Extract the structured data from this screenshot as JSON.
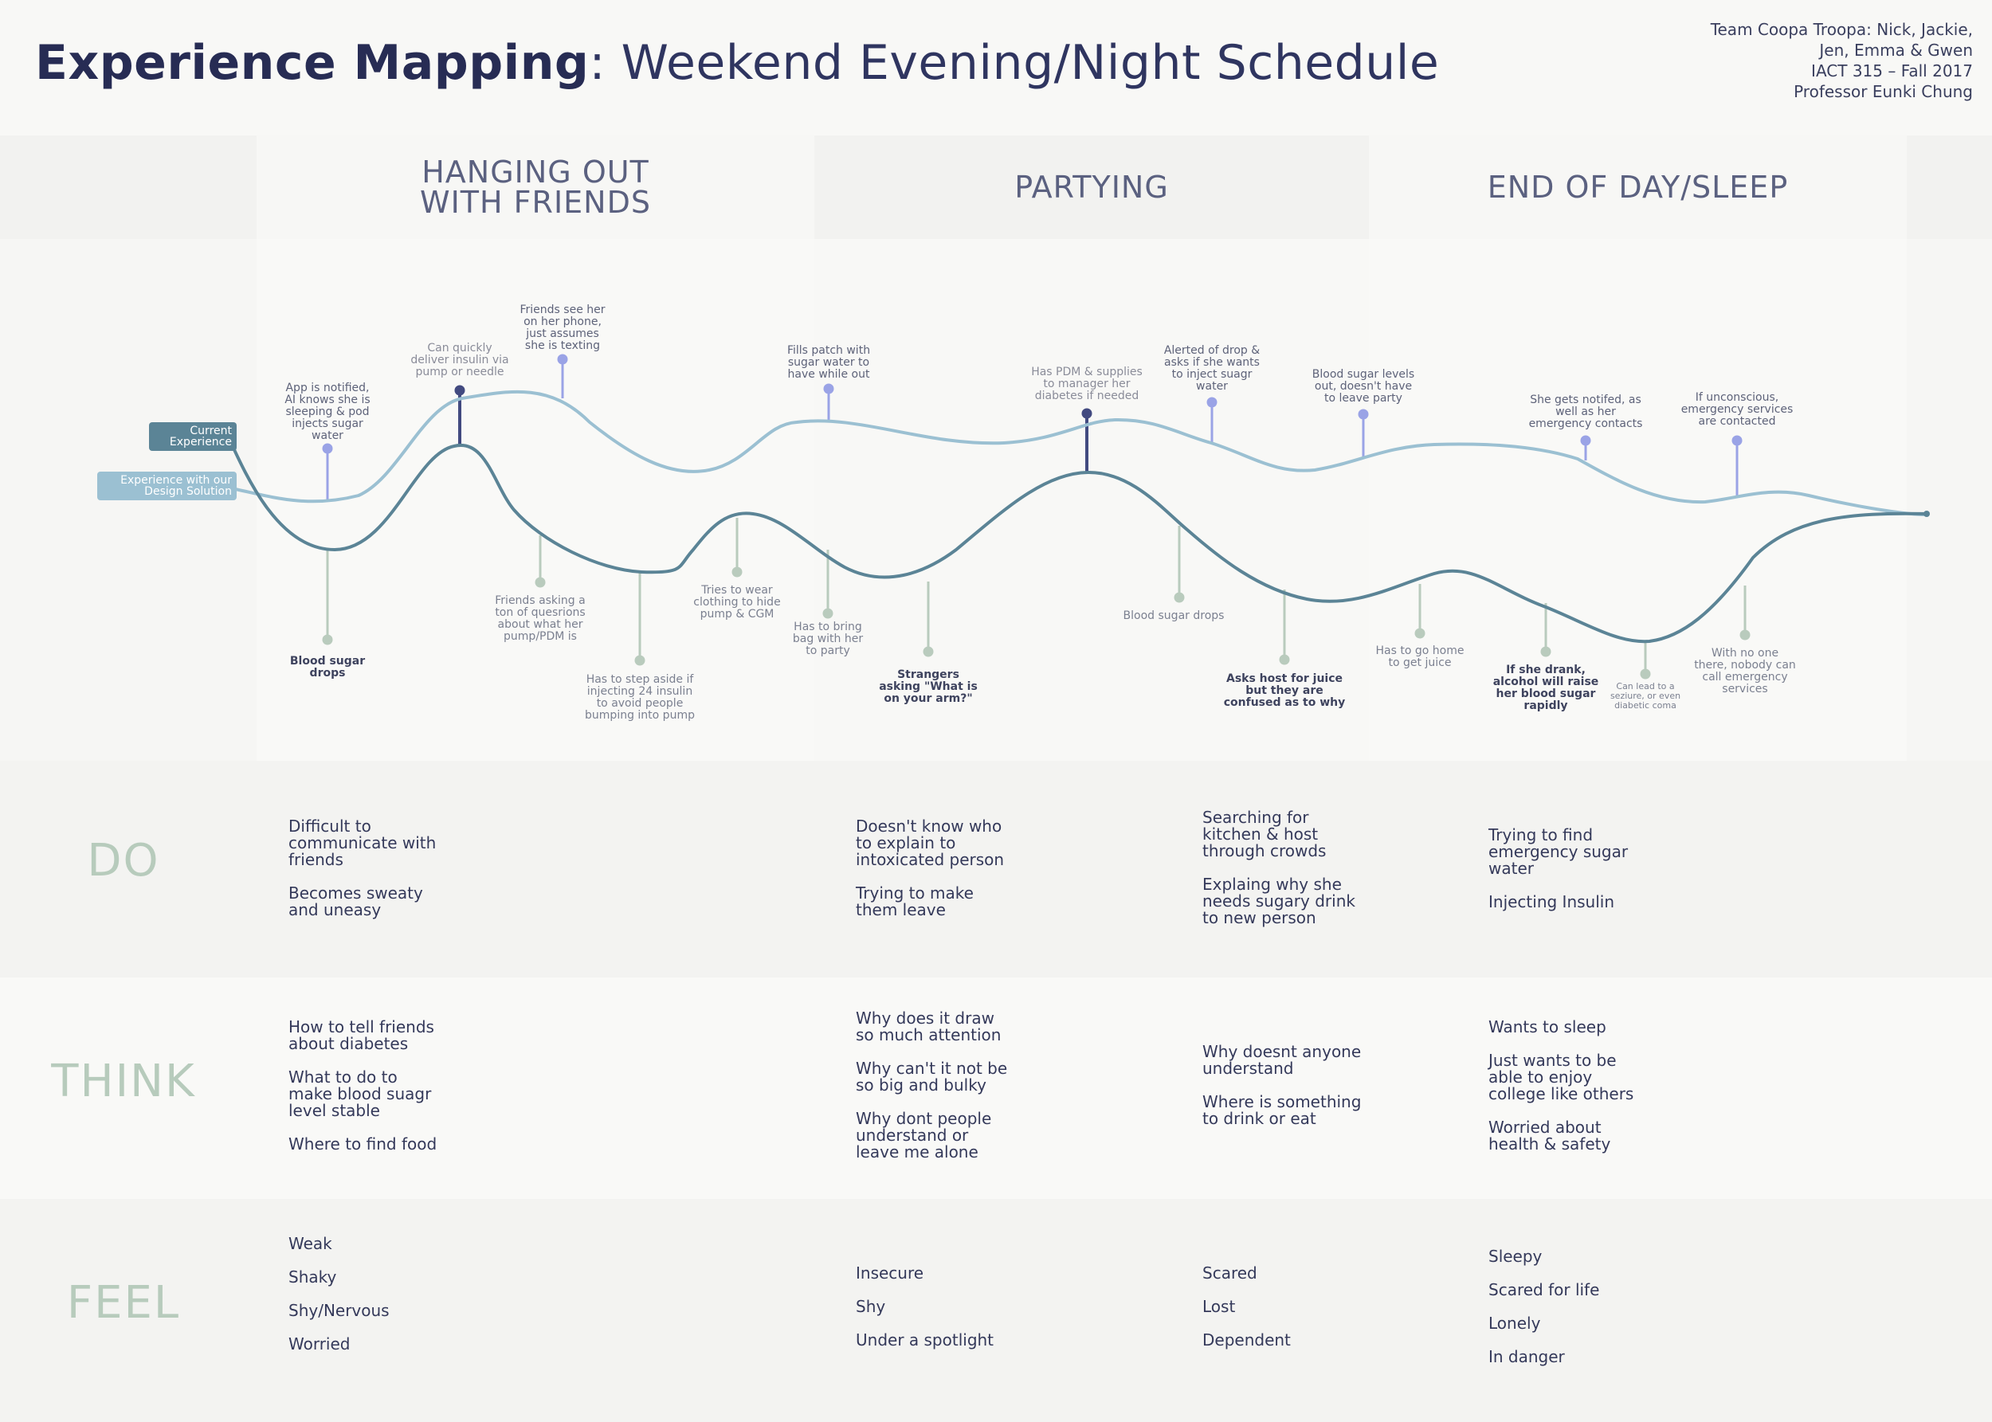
{
  "header": {
    "title_bold": "Experience Mapping",
    "title_rest": ": Weekend Evening/Night Schedule",
    "team_lines": [
      "Team Coopa Troopa: Nick, Jackie,",
      "Jen, Emma & Gwen",
      "IACT 315 – Fall 2017",
      "Professor Eunki Chung"
    ]
  },
  "phases": [
    "HANGING OUT\nWITH FRIENDS",
    "PARTYING",
    "END OF DAY/SLEEP"
  ],
  "legend": {
    "current": "Current\nExperience",
    "solution": "Experience with our\nDesign Solution"
  },
  "colors": {
    "current_line": "#5b8496",
    "solution_line": "#9bc0d2",
    "top_pin": "#9aa3e6",
    "dark_pin": "#424a80",
    "bottom_pin": "#b9cbbd",
    "row_label": "#b7cbbc"
  },
  "annotations_top": [
    "App is notified,\nAI knows she is\nsleeping & pod\ninjects sugar\nwater",
    "Can quickly\ndeliver insulin via\npump or needle",
    "Friends see her\non her phone,\njust assumes\nshe is texting",
    "Fills patch with\nsugar water to\nhave while out",
    "Has PDM & supplies\nto manager her\ndiabetes if needed",
    "Alerted of drop &\nasks if she wants\nto inject suagr\nwater",
    "Blood sugar levels\nout, doesn't have\nto leave party",
    "She gets notifed, as\nwell as her\nemergency contacts",
    "If unconscious,\nemergency services\nare contacted"
  ],
  "annotations_bottom": [
    "Blood sugar\ndrops",
    "Friends asking a\nton of quesrions\nabout what her\npump/PDM is",
    "Has to step aside if\ninjecting 24 insulin\nto avoid people\nbumping into pump",
    "Tries to wear\nclothing to hide\npump & CGM",
    "Has to bring\nbag with her\nto party",
    "Strangers\nasking \"What is\non your arm?\"",
    "Blood sugar drops",
    "Asks host for juice\nbut they are\nconfused as to why",
    "Has to go home\nto get juice",
    "If she drank,\nalcohol will raise\nher blood sugar\nrapidly",
    "Can lead to a\nseziure, or even\ndiabetic coma",
    "With no one\nthere, nobody can\ncall emergency\nservices"
  ],
  "rows": {
    "do": {
      "label": "DO",
      "cols": [
        [
          "Difficult to\ncommunicate with\nfriends",
          "Becomes sweaty\nand uneasy"
        ],
        [
          "Doesn't know who\nto explain to\nintoxicated person",
          "Trying to make\nthem leave"
        ],
        [
          "Searching for\nkitchen & host\nthrough crowds",
          "Explaing why she\nneeds sugary drink\nto new person"
        ],
        [
          "Trying to find\nemergency sugar\nwater",
          "Injecting Insulin"
        ]
      ]
    },
    "think": {
      "label": "THINK",
      "cols": [
        [
          "How to tell friends\nabout diabetes",
          "What to do to\nmake blood suagr\nlevel stable",
          "Where to find food"
        ],
        [
          "Why does it draw\nso much attention",
          "Why can't it not be\nso big and bulky",
          "Why dont people\nunderstand or\nleave me alone"
        ],
        [
          "Why doesnt anyone\nunderstand",
          "Where is something\nto drink or eat"
        ],
        [
          "Wants to sleep",
          "Just wants to be\nable to enjoy\ncollege like others",
          "Worried about\nhealth & safety"
        ]
      ]
    },
    "feel": {
      "label": "FEEL",
      "cols": [
        [
          "Weak",
          "Shaky",
          "Shy/Nervous",
          "Worried"
        ],
        [
          "Insecure",
          "Shy",
          "Under a spotlight"
        ],
        [
          "Scared",
          "Lost",
          "Dependent"
        ],
        [
          "Sleepy",
          "Scared for life",
          "Lonely",
          "In danger"
        ]
      ]
    }
  }
}
